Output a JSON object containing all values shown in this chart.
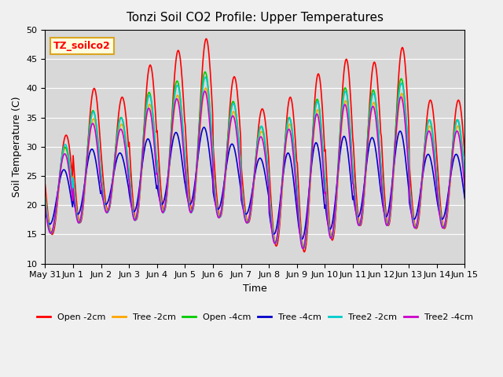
{
  "title": "Tonzi Soil CO2 Profile: Upper Temperatures",
  "xlabel": "Time",
  "ylabel": "Soil Temperature (C)",
  "ylim": [
    10,
    50
  ],
  "yticks": [
    10,
    15,
    20,
    25,
    30,
    35,
    40,
    45,
    50
  ],
  "fig_bg": "#f0f0f0",
  "plot_bg": "#d8d8d8",
  "series": [
    {
      "label": "Open -2cm",
      "color": "#ff0000"
    },
    {
      "label": "Tree -2cm",
      "color": "#ffa500"
    },
    {
      "label": "Open -4cm",
      "color": "#00cc00"
    },
    {
      "label": "Tree -4cm",
      "color": "#0000cc"
    },
    {
      "label": "Tree2 -2cm",
      "color": "#00cccc"
    },
    {
      "label": "Tree2 -4cm",
      "color": "#cc00cc"
    }
  ],
  "xtick_labels": [
    "May 31",
    "Jun 1",
    "Jun 2",
    "Jun 3",
    "Jun 4",
    "Jun 5",
    "Jun 6",
    "Jun 7",
    "Jun 8",
    "Jun 9",
    "Jun 10",
    "Jun 11",
    "Jun 12",
    "Jun 13",
    "Jun 14",
    "Jun 15"
  ],
  "annotation_text": "TZ_soilco2",
  "n_days": 15,
  "n_per_day": 48
}
